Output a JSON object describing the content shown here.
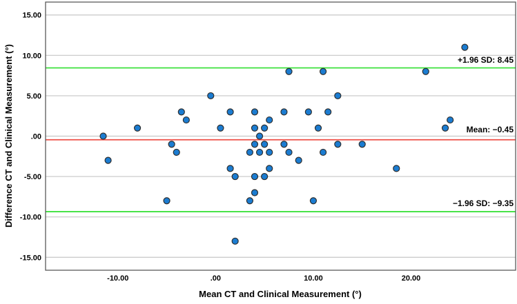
{
  "chart_data": {
    "type": "scatter",
    "title": "",
    "xlabel": "Mean CT and Clinical Measurement (°)",
    "ylabel": "Difference CT and Clinical Measurement (°)",
    "xlim": [
      -17.4,
      30.7
    ],
    "ylim": [
      -16.6,
      16.6
    ],
    "grid": "horizontal-only",
    "legend": "none",
    "x_ticks": [
      {
        "value": -10,
        "label": "-10.00"
      },
      {
        "value": 0,
        "label": ".00"
      },
      {
        "value": 10,
        "label": "10.00"
      },
      {
        "value": 20,
        "label": "20.00"
      }
    ],
    "y_ticks": [
      {
        "value": 15,
        "label": "15.00"
      },
      {
        "value": 10,
        "label": "10.00"
      },
      {
        "value": 5,
        "label": "5.00"
      },
      {
        "value": 0,
        "label": ".00"
      },
      {
        "value": -5,
        "label": "-5.00"
      },
      {
        "value": -10,
        "label": "-10.00"
      },
      {
        "value": -15,
        "label": "-15.00"
      }
    ],
    "reference_lines": [
      {
        "id": "upper-loa",
        "value": 8.45,
        "label": "+1.96 SD: 8.45",
        "color": "#3be13b"
      },
      {
        "id": "mean",
        "value": -0.45,
        "label": "Mean: −0.45",
        "color": "#ef4e45"
      },
      {
        "id": "lower-loa",
        "value": -9.35,
        "label": "−1.96 SD: −9.35",
        "color": "#3be13b"
      }
    ],
    "marker": {
      "shape": "circle",
      "fill": "#1b7cd1",
      "stroke": "#2e2e2e"
    },
    "colors": {
      "grid": "#c6c6c6",
      "frame": "#595959",
      "background": "#ffffff"
    },
    "points": [
      [
        25.5,
        11
      ],
      [
        7.5,
        8
      ],
      [
        11,
        8
      ],
      [
        21.5,
        8
      ],
      [
        -0.5,
        5
      ],
      [
        12.5,
        5
      ],
      [
        -3.5,
        3
      ],
      [
        1.5,
        3
      ],
      [
        4,
        3
      ],
      [
        7,
        3
      ],
      [
        9.5,
        3
      ],
      [
        11.5,
        3
      ],
      [
        -3,
        2
      ],
      [
        5.5,
        2
      ],
      [
        24,
        2
      ],
      [
        -8,
        1
      ],
      [
        0.5,
        1
      ],
      [
        4,
        1
      ],
      [
        5,
        1
      ],
      [
        10.5,
        1
      ],
      [
        23.5,
        1
      ],
      [
        -11.5,
        0
      ],
      [
        4.5,
        0
      ],
      [
        -4.5,
        -1
      ],
      [
        4,
        -1
      ],
      [
        5,
        -1
      ],
      [
        7,
        -1
      ],
      [
        12.5,
        -1
      ],
      [
        15,
        -1
      ],
      [
        -4,
        -2
      ],
      [
        3.5,
        -2
      ],
      [
        4.5,
        -2
      ],
      [
        5.5,
        -2
      ],
      [
        7.5,
        -2
      ],
      [
        11,
        -2
      ],
      [
        -11,
        -3
      ],
      [
        8.5,
        -3
      ],
      [
        1.5,
        -4
      ],
      [
        5.5,
        -4
      ],
      [
        18.5,
        -4
      ],
      [
        2,
        -5
      ],
      [
        4,
        -5
      ],
      [
        5,
        -5
      ],
      [
        4,
        -7
      ],
      [
        -5,
        -8
      ],
      [
        3.5,
        -8
      ],
      [
        10,
        -8
      ],
      [
        2,
        -13
      ]
    ]
  }
}
